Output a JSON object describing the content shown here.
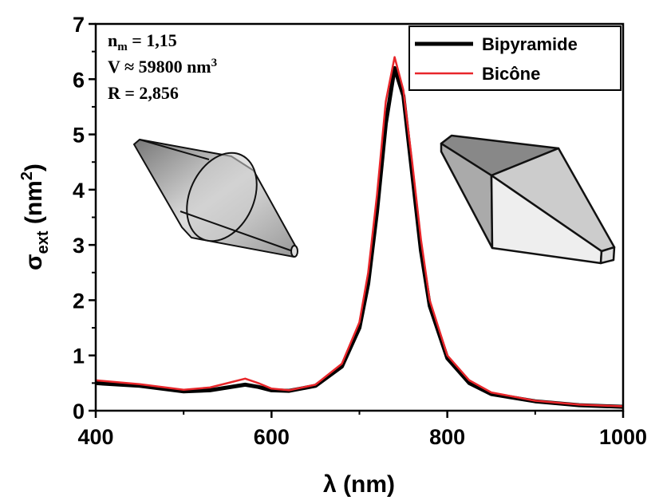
{
  "chart_data": {
    "type": "line",
    "x_label": "λ (nm)",
    "y_label_parts": [
      "σ",
      "ext",
      " (nm",
      "2",
      ")"
    ],
    "annotations": [
      [
        "n",
        "m",
        " = 1,15"
      ],
      [
        "V ≈ 59800 nm",
        "3",
        ""
      ],
      [
        "R = 2,856",
        "",
        ""
      ]
    ],
    "x": [
      400,
      450,
      500,
      530,
      550,
      570,
      585,
      600,
      620,
      650,
      680,
      700,
      710,
      720,
      730,
      740,
      750,
      760,
      770,
      780,
      800,
      825,
      850,
      900,
      950,
      1000
    ],
    "series": [
      {
        "name": "Bipyramide",
        "color": "#000000",
        "values": [
          0.5,
          0.45,
          0.35,
          0.37,
          0.42,
          0.47,
          0.43,
          0.37,
          0.36,
          0.45,
          0.8,
          1.5,
          2.3,
          3.6,
          5.2,
          6.2,
          5.7,
          4.3,
          2.9,
          1.9,
          0.95,
          0.5,
          0.3,
          0.17,
          0.1,
          0.07
        ]
      },
      {
        "name": "Bicône",
        "color": "#e8262a",
        "values": [
          0.55,
          0.48,
          0.38,
          0.42,
          0.5,
          0.58,
          0.5,
          0.4,
          0.37,
          0.47,
          0.85,
          1.6,
          2.5,
          3.9,
          5.6,
          6.4,
          5.8,
          4.5,
          3.1,
          2.0,
          1.0,
          0.55,
          0.33,
          0.18,
          0.11,
          0.08
        ]
      }
    ],
    "xlim": [
      400,
      1000
    ],
    "xticks": [
      400,
      600,
      800,
      1000
    ],
    "xminorticks": [
      500,
      700,
      900
    ],
    "ylim": [
      0,
      7
    ],
    "yticks": [
      0,
      1,
      2,
      3,
      4,
      5,
      6,
      7
    ],
    "yminorticks": [
      0.5,
      1.5,
      2.5,
      3.5,
      4.5,
      5.5,
      6.5
    ],
    "legend": "upper right"
  }
}
